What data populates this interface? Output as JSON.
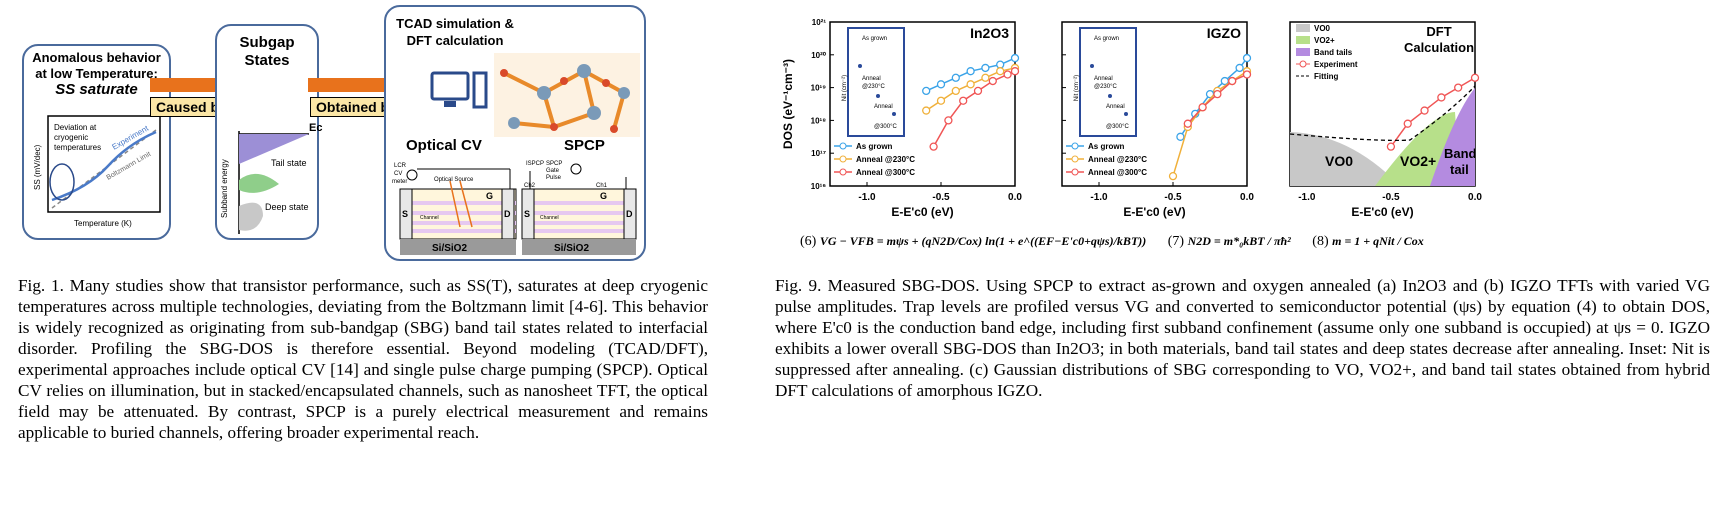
{
  "fig1": {
    "box1": {
      "title_line1": "Anomalous behavior",
      "title_line2": "at low Temperature;",
      "title_line3": "SS saturate",
      "y_axis": "SS (mV/dec)",
      "x_axis": "Temperature (K)",
      "note_line1": "Deviation at",
      "note_line2": "cryogenic",
      "note_line3": "temperatures",
      "experiment": "Experiment",
      "boltzmann": "Boltzmann Limit"
    },
    "arrow1_label": "Caused by",
    "box2": {
      "title_line1": "Subgap",
      "title_line2": "States",
      "ec": "Ec",
      "y_axis": "Subband energy",
      "tail": "Tail state",
      "deep": "Deep state"
    },
    "arrow2_label": "Obtained by",
    "box3": {
      "title_line1": "TCAD simulation &",
      "title_line2": "DFT calculation",
      "optical_cv": "Optical CV",
      "spcp": "SPCP",
      "lcr": "LCR",
      "cv": "CV",
      "meter": "meter",
      "optical_source": "Optical Source",
      "ispcp": "ISPCP",
      "spcp_gate": "SPCP",
      "gate": "Gate",
      "pulse": "Pulse",
      "ch1": "Ch1",
      "ch2": "Ch2",
      "s": "S",
      "d": "D",
      "g": "G",
      "channel": "Channel",
      "substrate": "Si/SiO2"
    },
    "caption": "Fig. 1. Many studies show that transistor performance, such as SS(T), saturates at deep cryogenic temperatures across multiple technologies, deviating from the Boltzmann limit [4-6]. This behavior is widely recognized as originating from sub-bandgap (SBG) band tail states related to interfacial disorder. Profiling the SBG-DOS is therefore essential. Beyond modeling (TCAD/DFT), experimental approaches include optical CV [14] and single pulse charge pumping (SPCP). Optical CV relies on illumination, but in stacked/encapsulated channels, such as nanosheet TFT, the optical field may be attenuated. By contrast, SPCP is a purely electrical measurement and remains applicable to buried channels, offering broader experimental reach."
  },
  "fig9": {
    "ylabel": "DOS (eV⁻¹cm⁻³)",
    "xlabel": "E-E'c0 (eV)",
    "yticks": [
      "10²¹",
      "10²⁰",
      "10¹⁹",
      "10¹⁸",
      "10¹⁷",
      "10¹⁶"
    ],
    "xticks": [
      "-1.0",
      "-0.5",
      "0.0"
    ],
    "panel_a_title": "In2O3",
    "panel_b_title": "IGZO",
    "panel_c_title_line1": "DFT",
    "panel_c_title_line2": "Calculation",
    "legend": [
      "As grown",
      "Anneal @230°C",
      "Anneal @300°C"
    ],
    "inset": {
      "ylabel": "Nit (cm⁻²)",
      "as_grown": "As grown",
      "anneal": "Anneal",
      "a230": "@230°C",
      "a300": "@300°C"
    },
    "dft_legend": [
      "VO0",
      "VO2+",
      "Band tails",
      "Experiment",
      "Fitting"
    ],
    "dft_labels": [
      "VO0",
      "VO2+",
      "Band",
      "tail"
    ],
    "colors": {
      "as_grown": "#3aa3e8",
      "a230": "#f0b03a",
      "a300": "#f05555",
      "vo0": "#c8c8c8",
      "vo2": "#b7e08a",
      "tails": "#b48be0"
    },
    "eq6_num": "(6)",
    "eq6": "VG − VFB = mψs + (qN2D/Cox) ln(1 + e^((EF−E'c0+qψs)/kBT))",
    "eq7_num": "(7)",
    "eq7": "N2D = m*₀kBT / πħ²",
    "eq8_num": "(8)",
    "eq8": "m = 1 + qNit / Cox",
    "caption": "Fig. 9. Measured SBG-DOS. Using SPCP to extract as-grown and oxygen annealed (a) In2O3 and (b) IGZO TFTs with varied VG pulse amplitudes. Trap levels are profiled versus VG and converted to semiconductor potential (ψs) by equation (4) to obtain DOS, where E'c0 is the conduction band edge, including first subband confinement (assume only one subband is occupied) at ψs = 0. IGZO exhibits a lower overall SBG-DOS than In2O3; in both materials, band tail states and deep states decrease after annealing. Inset: Nit is suppressed after annealing. (c) Gaussian distributions of SBG corresponding to VO, VO2+, and band tail states obtained from hybrid DFT calculations of amorphous IGZO."
  },
  "chart_data": [
    {
      "type": "line",
      "title": "In2O3",
      "xlabel": "E-E'c0 (eV)",
      "ylabel": "DOS (eV-1cm-3)",
      "xlim": [
        -1.25,
        0.0
      ],
      "ylim_log10": [
        16,
        21
      ],
      "series": [
        {
          "name": "As grown",
          "x": [
            -0.6,
            -0.5,
            -0.4,
            -0.3,
            -0.2,
            -0.1,
            0.0
          ],
          "log10_y": [
            18.9,
            19.1,
            19.3,
            19.5,
            19.6,
            19.7,
            19.9
          ]
        },
        {
          "name": "Anneal @230°C",
          "x": [
            -0.6,
            -0.5,
            -0.4,
            -0.3,
            -0.2,
            -0.1,
            0.0
          ],
          "log10_y": [
            18.3,
            18.6,
            18.9,
            19.1,
            19.3,
            19.5,
            19.6
          ]
        },
        {
          "name": "Anneal @300°C",
          "x": [
            -0.55,
            -0.45,
            -0.35,
            -0.25,
            -0.15,
            -0.05,
            0.0
          ],
          "log10_y": [
            17.2,
            18.0,
            18.6,
            18.9,
            19.2,
            19.4,
            19.5
          ]
        }
      ]
    },
    {
      "type": "line",
      "title": "IGZO",
      "xlabel": "E-E'c0 (eV)",
      "ylabel": "DOS (eV-1cm-3)",
      "xlim": [
        -1.25,
        0.0
      ],
      "ylim_log10": [
        16,
        21
      ],
      "series": [
        {
          "name": "As grown",
          "x": [
            -0.45,
            -0.35,
            -0.25,
            -0.15,
            -0.05,
            0.0
          ],
          "log10_y": [
            17.5,
            18.2,
            18.8,
            19.2,
            19.6,
            19.9
          ]
        },
        {
          "name": "Anneal @230°C",
          "x": [
            -0.5,
            -0.4,
            -0.3,
            -0.2,
            -0.1,
            0.0
          ],
          "log10_y": [
            16.3,
            17.8,
            18.4,
            18.9,
            19.2,
            19.5
          ]
        },
        {
          "name": "Anneal @300°C",
          "x": [
            -0.4,
            -0.3,
            -0.2,
            -0.1,
            0.0
          ],
          "log10_y": [
            17.9,
            18.4,
            18.8,
            19.2,
            19.4
          ]
        }
      ]
    },
    {
      "type": "area",
      "title": "DFT Calculation",
      "xlabel": "E-E'c0 (eV)",
      "xlim": [
        -1.1,
        0.0
      ],
      "series": [
        {
          "name": "Experiment",
          "x": [
            -0.5,
            -0.4,
            -0.3,
            -0.2,
            -0.1,
            0.0
          ],
          "log10_y": [
            17.2,
            17.9,
            18.3,
            18.7,
            19.0,
            19.3
          ]
        }
      ]
    }
  ]
}
